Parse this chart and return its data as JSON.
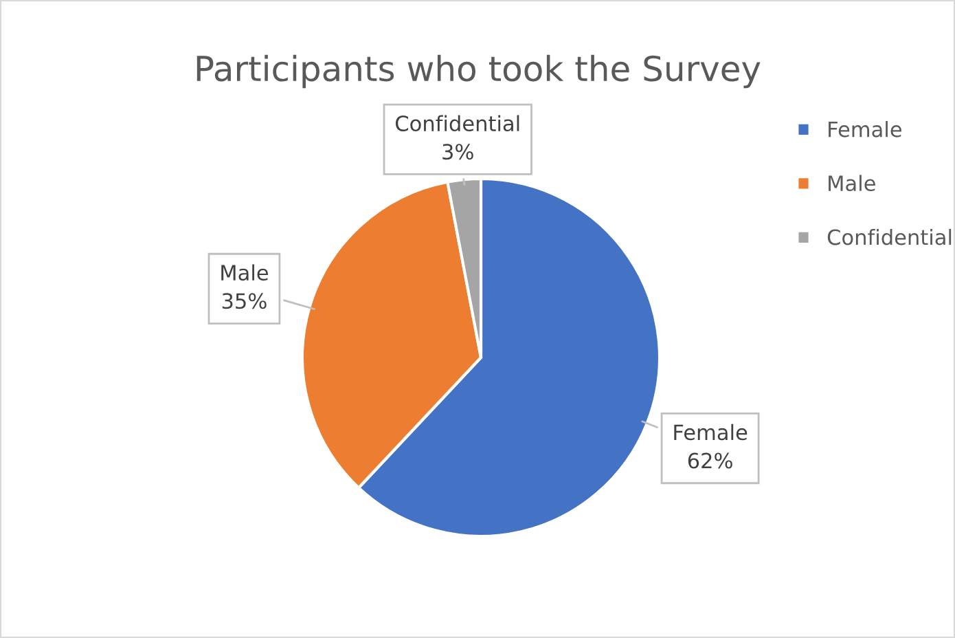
{
  "chart_data": {
    "type": "pie",
    "title": "Participants who took the Survey",
    "categories": [
      "Female",
      "Male",
      "Confidential"
    ],
    "values": [
      62,
      35,
      3
    ],
    "colors": [
      "#4472c4",
      "#ed7d31",
      "#a5a5a5"
    ],
    "value_labels": [
      "62%",
      "35%",
      "3%"
    ],
    "legend": "right"
  }
}
